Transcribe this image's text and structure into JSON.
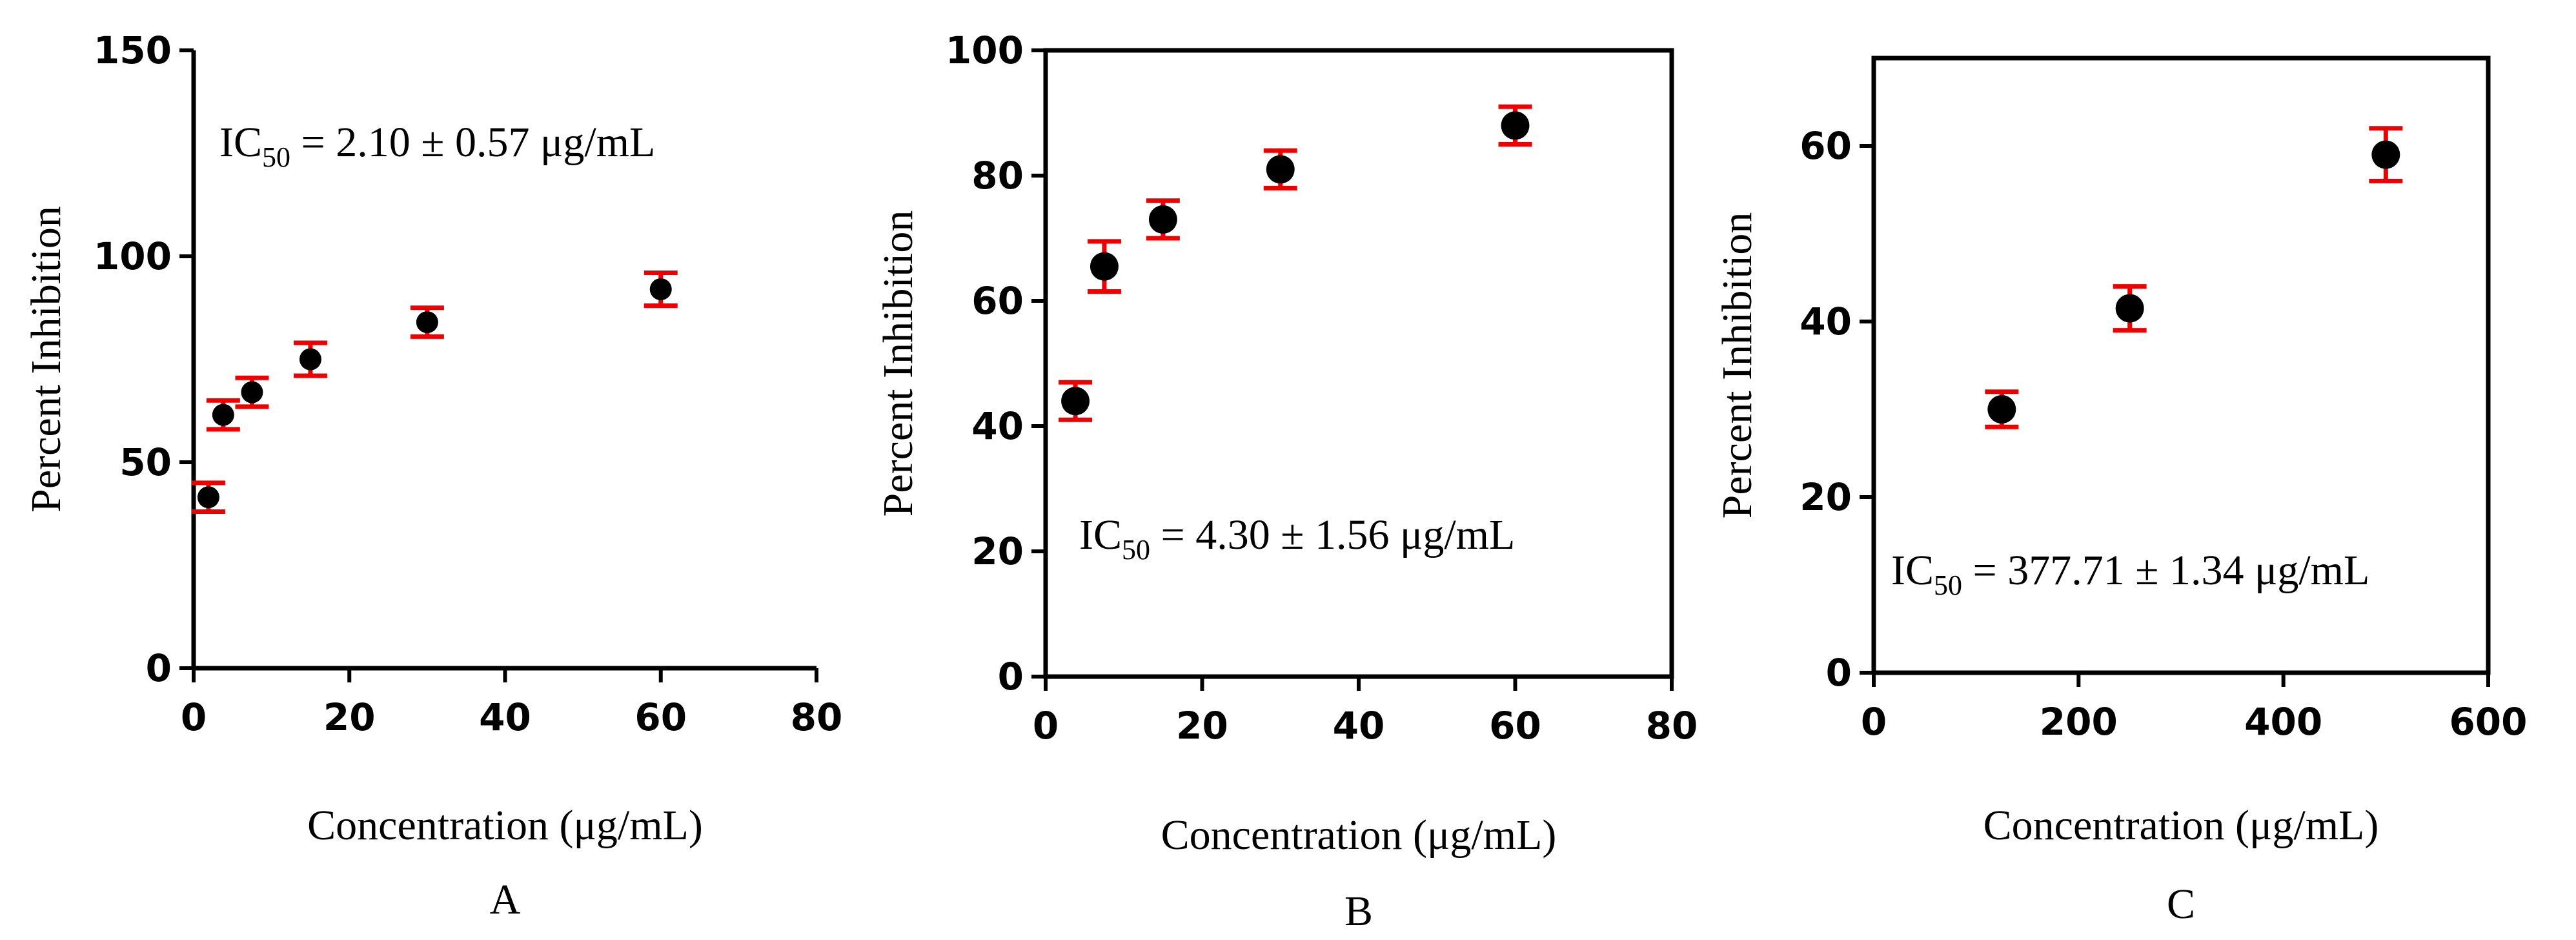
{
  "chart_data": [
    {
      "type": "scatter",
      "panel_label": "A",
      "xlabel": "Concentration (μg/mL)",
      "ylabel": "Percent Inhibition",
      "xlim": [
        0,
        80
      ],
      "ylim": [
        0,
        150
      ],
      "xticks": [
        0,
        20,
        40,
        60,
        80
      ],
      "yticks": [
        0,
        50,
        100,
        150
      ],
      "annotation": {
        "prefix": "IC",
        "subscript": "50",
        "suffix": " = 2.10 ± 0.57 μg/mL"
      },
      "points": [
        {
          "x": 1.9,
          "y": 41.5,
          "err": 3.5
        },
        {
          "x": 3.8,
          "y": 61.5,
          "err": 3.5
        },
        {
          "x": 7.5,
          "y": 67,
          "err": 3.5
        },
        {
          "x": 15,
          "y": 75,
          "err": 4
        },
        {
          "x": 30,
          "y": 84,
          "err": 3.5
        },
        {
          "x": 60,
          "y": 92,
          "err": 4
        }
      ]
    },
    {
      "type": "scatter",
      "panel_label": "B",
      "xlabel": "Concentration (μg/mL)",
      "ylabel": "Percent Inhibition",
      "xlim": [
        0,
        80
      ],
      "ylim": [
        0,
        100
      ],
      "xticks": [
        0,
        20,
        40,
        60,
        80
      ],
      "yticks": [
        0,
        20,
        40,
        60,
        80,
        100
      ],
      "annotation": {
        "prefix": "IC",
        "subscript": "50",
        "suffix": " = 4.30 ± 1.56 μg/mL"
      },
      "points": [
        {
          "x": 3.8,
          "y": 44,
          "err": 3
        },
        {
          "x": 7.5,
          "y": 65.5,
          "err": 4
        },
        {
          "x": 15,
          "y": 73,
          "err": 3
        },
        {
          "x": 30,
          "y": 81,
          "err": 3
        },
        {
          "x": 60,
          "y": 88,
          "err": 3
        }
      ]
    },
    {
      "type": "scatter",
      "panel_label": "C",
      "xlabel": "Concentration (μg/mL)",
      "ylabel": "Percent Inhibition",
      "xlim": [
        0,
        600
      ],
      "ylim": [
        0,
        70
      ],
      "xticks": [
        0,
        200,
        400,
        600
      ],
      "yticks": [
        0,
        20,
        40,
        60
      ],
      "annotation": {
        "prefix": "IC",
        "subscript": "50",
        "suffix": " =  377.71 ± 1.34 μg/mL"
      },
      "points": [
        {
          "x": 125,
          "y": 30,
          "err": 2
        },
        {
          "x": 250,
          "y": 41.5,
          "err": 2.5
        },
        {
          "x": 500,
          "y": 59,
          "err": 3
        }
      ]
    }
  ],
  "colors": {
    "marker": "#000000",
    "error_bar": "#ee0000",
    "axis": "#000000"
  }
}
